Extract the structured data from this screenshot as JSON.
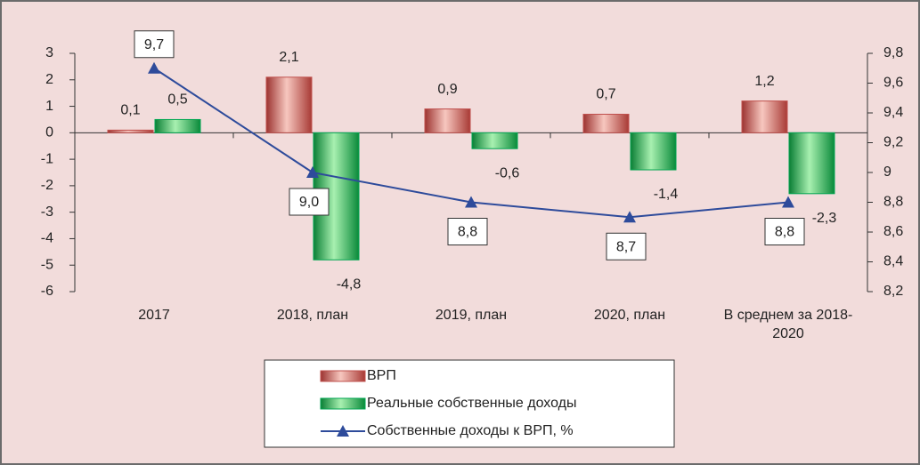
{
  "chart_data": {
    "type": "bar",
    "categories": [
      "2017",
      "2018, план",
      "2019, план",
      "2020, план",
      "В среднем за 2018-2020"
    ],
    "series": [
      {
        "name": "ВРП",
        "color": "#c0504d",
        "values": [
          0.1,
          2.1,
          0.9,
          0.7,
          1.2
        ],
        "value_labels": [
          "0,1",
          "2,1",
          "0,9",
          "0,7",
          "1,2"
        ]
      },
      {
        "name": "Реальные собственные доходы",
        "color": "#00a651",
        "values": [
          0.5,
          -4.8,
          -0.6,
          -1.4,
          -2.3
        ],
        "value_labels": [
          "0,5",
          "-4,8",
          "-0,6",
          "-1,4",
          "-2,3"
        ]
      },
      {
        "name": "Собственные доходы к ВРП, %",
        "color": "#2e4b9b",
        "type": "line",
        "axis": "y2",
        "values": [
          9.7,
          9.0,
          8.8,
          8.7,
          8.8
        ],
        "value_labels": [
          "9,7",
          "9,0",
          "8,8",
          "8,7",
          "8,8"
        ]
      }
    ],
    "ylim": [
      -6,
      3
    ],
    "yticks": [
      -6,
      -5,
      -4,
      -3,
      -2,
      -1,
      0,
      1,
      2,
      3
    ],
    "y2lim": [
      8.2,
      9.8
    ],
    "y2ticks": [
      {
        "value": 8.2,
        "label": "8,2"
      },
      {
        "value": 8.4,
        "label": "8,4"
      },
      {
        "value": 8.6,
        "label": "8,6"
      },
      {
        "value": 8.8,
        "label": "8,8"
      },
      9,
      {
        "value": 9.2,
        "label": "9,2"
      },
      {
        "value": 9.4,
        "label": "9,4"
      },
      {
        "value": 9.6,
        "label": "9,6"
      },
      {
        "value": 9.8,
        "label": "9,8"
      }
    ],
    "legend": "bottom"
  }
}
